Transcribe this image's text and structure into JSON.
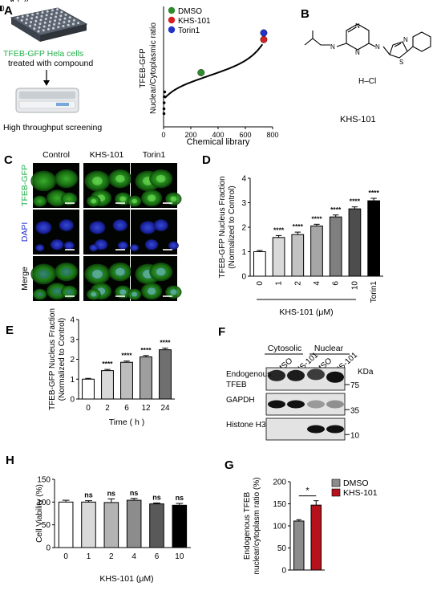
{
  "panel_letters": {
    "A": "A",
    "B": "B",
    "C": "C",
    "D": "D",
    "E": "E",
    "F": "F",
    "G": "G",
    "H": "H"
  },
  "panelA": {
    "caption_line1": "TFEB-GFP Hela cells",
    "caption_line2": "treated with compound",
    "caption_bottom": "High throughput screening"
  },
  "panelB": {
    "salt_label": "H–Cl",
    "compound_name": "KHS-101"
  },
  "panelC": {
    "columns": [
      "Control",
      "KHS-101",
      "Torin1"
    ],
    "rows": [
      "TFEB-GFP",
      "DAPI",
      "Merge"
    ]
  },
  "panelF": {
    "group_labels": [
      "Cytosolic",
      "Nuclear"
    ],
    "lane_labels": [
      "DMSO",
      "KHS-101",
      "DMSO",
      "KHS-101"
    ],
    "kda_label": "KDa",
    "blot_rows": [
      {
        "label_line1": "Endogenous",
        "label_line2": "TFEB",
        "marker": "75"
      },
      {
        "label_line1": "GAPDH",
        "label_line2": "",
        "marker": "35"
      },
      {
        "label_line1": "Histone H3",
        "label_line2": "",
        "marker": "10"
      }
    ]
  },
  "chart_data": [
    {
      "panel": "A",
      "type": "scatter",
      "ylabel_line1": "TFEB-GFP",
      "ylabel_line2": "Nuclear/Cytoplasmic ratio",
      "xlabel": "Chemical library",
      "xlim": [
        0,
        800
      ],
      "ylim": [
        0,
        2.0
      ],
      "xticks": [
        "0",
        "200",
        "400",
        "600",
        "800"
      ],
      "legend": [
        {
          "name": "DMSO",
          "color": "#2e8b2e"
        },
        {
          "name": "KHS-101",
          "color": "#d42020"
        },
        {
          "name": "Torin1",
          "color": "#2233cc"
        }
      ],
      "curve_color": "#000000",
      "highlights": [
        {
          "name": "DMSO",
          "x": 275,
          "y": 0.9,
          "color": "#2e8b2e"
        },
        {
          "name": "KHS-101",
          "x": 735,
          "y": 1.45,
          "color": "#d42020"
        },
        {
          "name": "Torin1",
          "x": 735,
          "y": 1.56,
          "color": "#2233cc"
        }
      ]
    },
    {
      "panel": "D",
      "type": "bar",
      "ylabel_line1": "TFEB-GFP Nucleus Fraction",
      "ylabel_line2": "(Normalized to Control)",
      "xlabel": "KHS-101 (μM)",
      "categories": [
        "0",
        "1",
        "2",
        "4",
        "6",
        "10",
        "Torin1"
      ],
      "values": [
        1.0,
        1.58,
        1.7,
        2.05,
        2.42,
        2.75,
        3.08
      ],
      "errors": [
        0.05,
        0.08,
        0.1,
        0.07,
        0.08,
        0.08,
        0.1
      ],
      "significance": [
        "",
        "****",
        "****",
        "****",
        "****",
        "****",
        "****"
      ],
      "fills": [
        "#ffffff",
        "#d9d9d9",
        "#c2c2c2",
        "#a6a6a6",
        "#7f7f7f",
        "#4d4d4d",
        "#000000"
      ],
      "ylim": [
        0,
        4
      ],
      "yticks": [
        "0",
        "1",
        "2",
        "3",
        "4"
      ]
    },
    {
      "panel": "E",
      "type": "bar",
      "ylabel_line1": "TFEB-GFP Nucleus Fraction",
      "ylabel_line2": "(Normalized to Control)",
      "xlabel": "Time ( h )",
      "categories": [
        "0",
        "2",
        "6",
        "12",
        "24"
      ],
      "values": [
        1.0,
        1.43,
        1.85,
        2.12,
        2.48
      ],
      "errors": [
        0.04,
        0.06,
        0.06,
        0.07,
        0.08
      ],
      "significance": [
        "",
        "****",
        "****",
        "****",
        "****"
      ],
      "fills": [
        "#ffffff",
        "#d9d9d9",
        "#bdbdbd",
        "#9e9e9e",
        "#6f6f6f"
      ],
      "ylim": [
        0,
        4
      ],
      "yticks": [
        "0",
        "1",
        "2",
        "3",
        "4"
      ]
    },
    {
      "panel": "G",
      "type": "bar",
      "ylabel_line1": "Endogenous TFEB",
      "ylabel_line2": "nuclear/cytoplasm ratio (%)",
      "xlabel": "",
      "categories": [
        "DMSO",
        "KHS-101"
      ],
      "values": [
        111,
        147
      ],
      "errors": [
        3,
        10
      ],
      "significance_bracket": "*",
      "fills": [
        "#8c8c8c",
        "#b5121b"
      ],
      "legend": [
        {
          "name": "DMSO",
          "color": "#8c8c8c"
        },
        {
          "name": "KHS-101",
          "color": "#b5121b"
        }
      ],
      "ylim": [
        0,
        200
      ],
      "yticks": [
        "0",
        "50",
        "100",
        "150",
        "200"
      ]
    },
    {
      "panel": "H",
      "type": "bar",
      "ylabel_line1": "Cell Viability (%)",
      "ylabel_line2": "",
      "xlabel": "KHS-101 (μM)",
      "categories": [
        "0",
        "1",
        "2",
        "4",
        "6",
        "10"
      ],
      "values": [
        100,
        100,
        99,
        104,
        96,
        93
      ],
      "errors": [
        4,
        3,
        8,
        4,
        2,
        4
      ],
      "significance": [
        "",
        "ns",
        "ns",
        "ns",
        "ns",
        "ns"
      ],
      "fills": [
        "#ffffff",
        "#d9d9d9",
        "#b3b3b3",
        "#8c8c8c",
        "#595959",
        "#000000"
      ],
      "ylim": [
        0,
        150
      ],
      "yticks": [
        "0",
        "50",
        "100",
        "150"
      ]
    }
  ]
}
